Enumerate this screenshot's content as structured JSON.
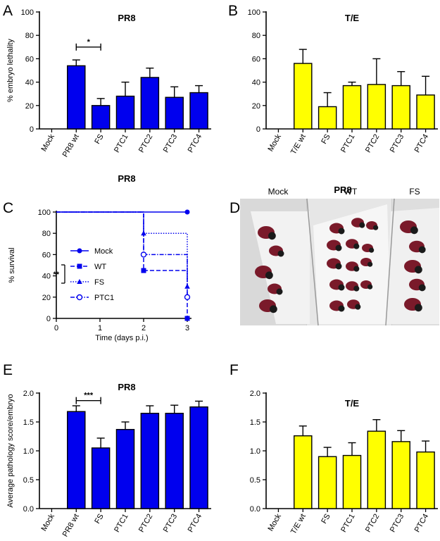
{
  "panel_labels": [
    "A",
    "B",
    "C",
    "D",
    "E",
    "F"
  ],
  "colors": {
    "blue": "#0000ee",
    "yellow": "#ffff00",
    "axis": "#000000"
  },
  "chart_data": [
    {
      "panel": "A",
      "type": "bar",
      "title": "PR8",
      "xlabel": "",
      "ylabel": "% embryo lethality",
      "categories": [
        "Mock",
        "PR8 wt",
        "FS",
        "PTC1",
        "PTC2",
        "PTC3",
        "PTC4"
      ],
      "values": [
        0,
        54,
        20,
        28,
        44,
        27,
        31
      ],
      "errors": [
        0,
        5,
        6,
        12,
        8,
        9,
        6
      ],
      "ylim": [
        0,
        100
      ],
      "yticks": [
        0,
        20,
        40,
        60,
        80,
        100
      ],
      "color": "#0000ee",
      "significance": [
        {
          "from": 1,
          "to": 2,
          "label": "*",
          "y": 70
        }
      ]
    },
    {
      "panel": "B",
      "type": "bar",
      "title": "T/E",
      "xlabel": "",
      "ylabel": "",
      "categories": [
        "Mock",
        "T/E wt",
        "FS",
        "PTC1",
        "PTC2",
        "PTC3",
        "PTC4"
      ],
      "values": [
        0,
        56,
        19,
        37,
        38,
        37,
        29
      ],
      "errors": [
        0,
        12,
        12,
        3,
        22,
        12,
        16
      ],
      "ylim": [
        0,
        100
      ],
      "yticks": [
        0,
        20,
        40,
        60,
        80,
        100
      ],
      "color": "#ffff00",
      "significance": []
    },
    {
      "panel": "C",
      "type": "line",
      "title": "PR8",
      "xlabel": "Time (days p.i.)",
      "ylabel": "% survival",
      "xlim": [
        0,
        3
      ],
      "xticks": [
        0,
        1,
        2,
        3
      ],
      "ylim": [
        0,
        100
      ],
      "yticks": [
        0,
        20,
        40,
        60,
        80,
        100
      ],
      "series": [
        {
          "name": "Mock",
          "x": [
            0,
            2,
            3
          ],
          "y": [
            100,
            100,
            100
          ],
          "marker": "circle",
          "dash": "solid"
        },
        {
          "name": "WT",
          "x": [
            0,
            2,
            2,
            3,
            3
          ],
          "y": [
            100,
            100,
            45,
            45,
            0
          ],
          "marker": "square",
          "dash": "dashed"
        },
        {
          "name": "FS",
          "x": [
            0,
            2,
            2,
            3,
            3
          ],
          "y": [
            100,
            100,
            80,
            80,
            30
          ],
          "marker": "triangle",
          "dash": "dotted"
        },
        {
          "name": "PTC1",
          "x": [
            0,
            2,
            2,
            3,
            3
          ],
          "y": [
            100,
            100,
            60,
            60,
            20
          ],
          "marker": "open-circle",
          "dash": "dashdot"
        }
      ],
      "significance": [
        {
          "label": "**"
        }
      ]
    },
    {
      "panel": "E",
      "type": "bar",
      "title": "PR8",
      "xlabel": "",
      "ylabel": "Average pathology score/embryo",
      "categories": [
        "Mock",
        "PR8 wt",
        "FS",
        "PTC1",
        "PTC2",
        "PTC3",
        "PTC4"
      ],
      "values": [
        0,
        1.68,
        1.05,
        1.37,
        1.65,
        1.65,
        1.76
      ],
      "errors": [
        0,
        0.1,
        0.17,
        0.13,
        0.13,
        0.14,
        0.1
      ],
      "ylim": [
        0,
        2.0
      ],
      "yticks": [
        "0.0",
        "0.5",
        "1.0",
        "1.5",
        "2.0"
      ],
      "color": "#0000ee",
      "significance": [
        {
          "from": 1,
          "to": 2,
          "label": "***",
          "y": 1.87
        }
      ]
    },
    {
      "panel": "F",
      "type": "bar",
      "title": "T/E",
      "xlabel": "",
      "ylabel": "",
      "categories": [
        "Mock",
        "T/E wt",
        "FS",
        "PTC1",
        "PTC2",
        "PTC3",
        "PTC4"
      ],
      "values": [
        0,
        1.26,
        0.9,
        0.92,
        1.34,
        1.16,
        0.98
      ],
      "errors": [
        0,
        0.17,
        0.16,
        0.22,
        0.2,
        0.19,
        0.19
      ],
      "ylim": [
        0,
        2.0
      ],
      "yticks": [
        "0.0",
        "0.5",
        "1.0",
        "1.5",
        "2.0"
      ],
      "color": "#ffff00",
      "significance": []
    }
  ],
  "photo": {
    "panel": "D",
    "title": "PR8",
    "labels": [
      "Mock",
      "WT",
      "FS"
    ]
  }
}
